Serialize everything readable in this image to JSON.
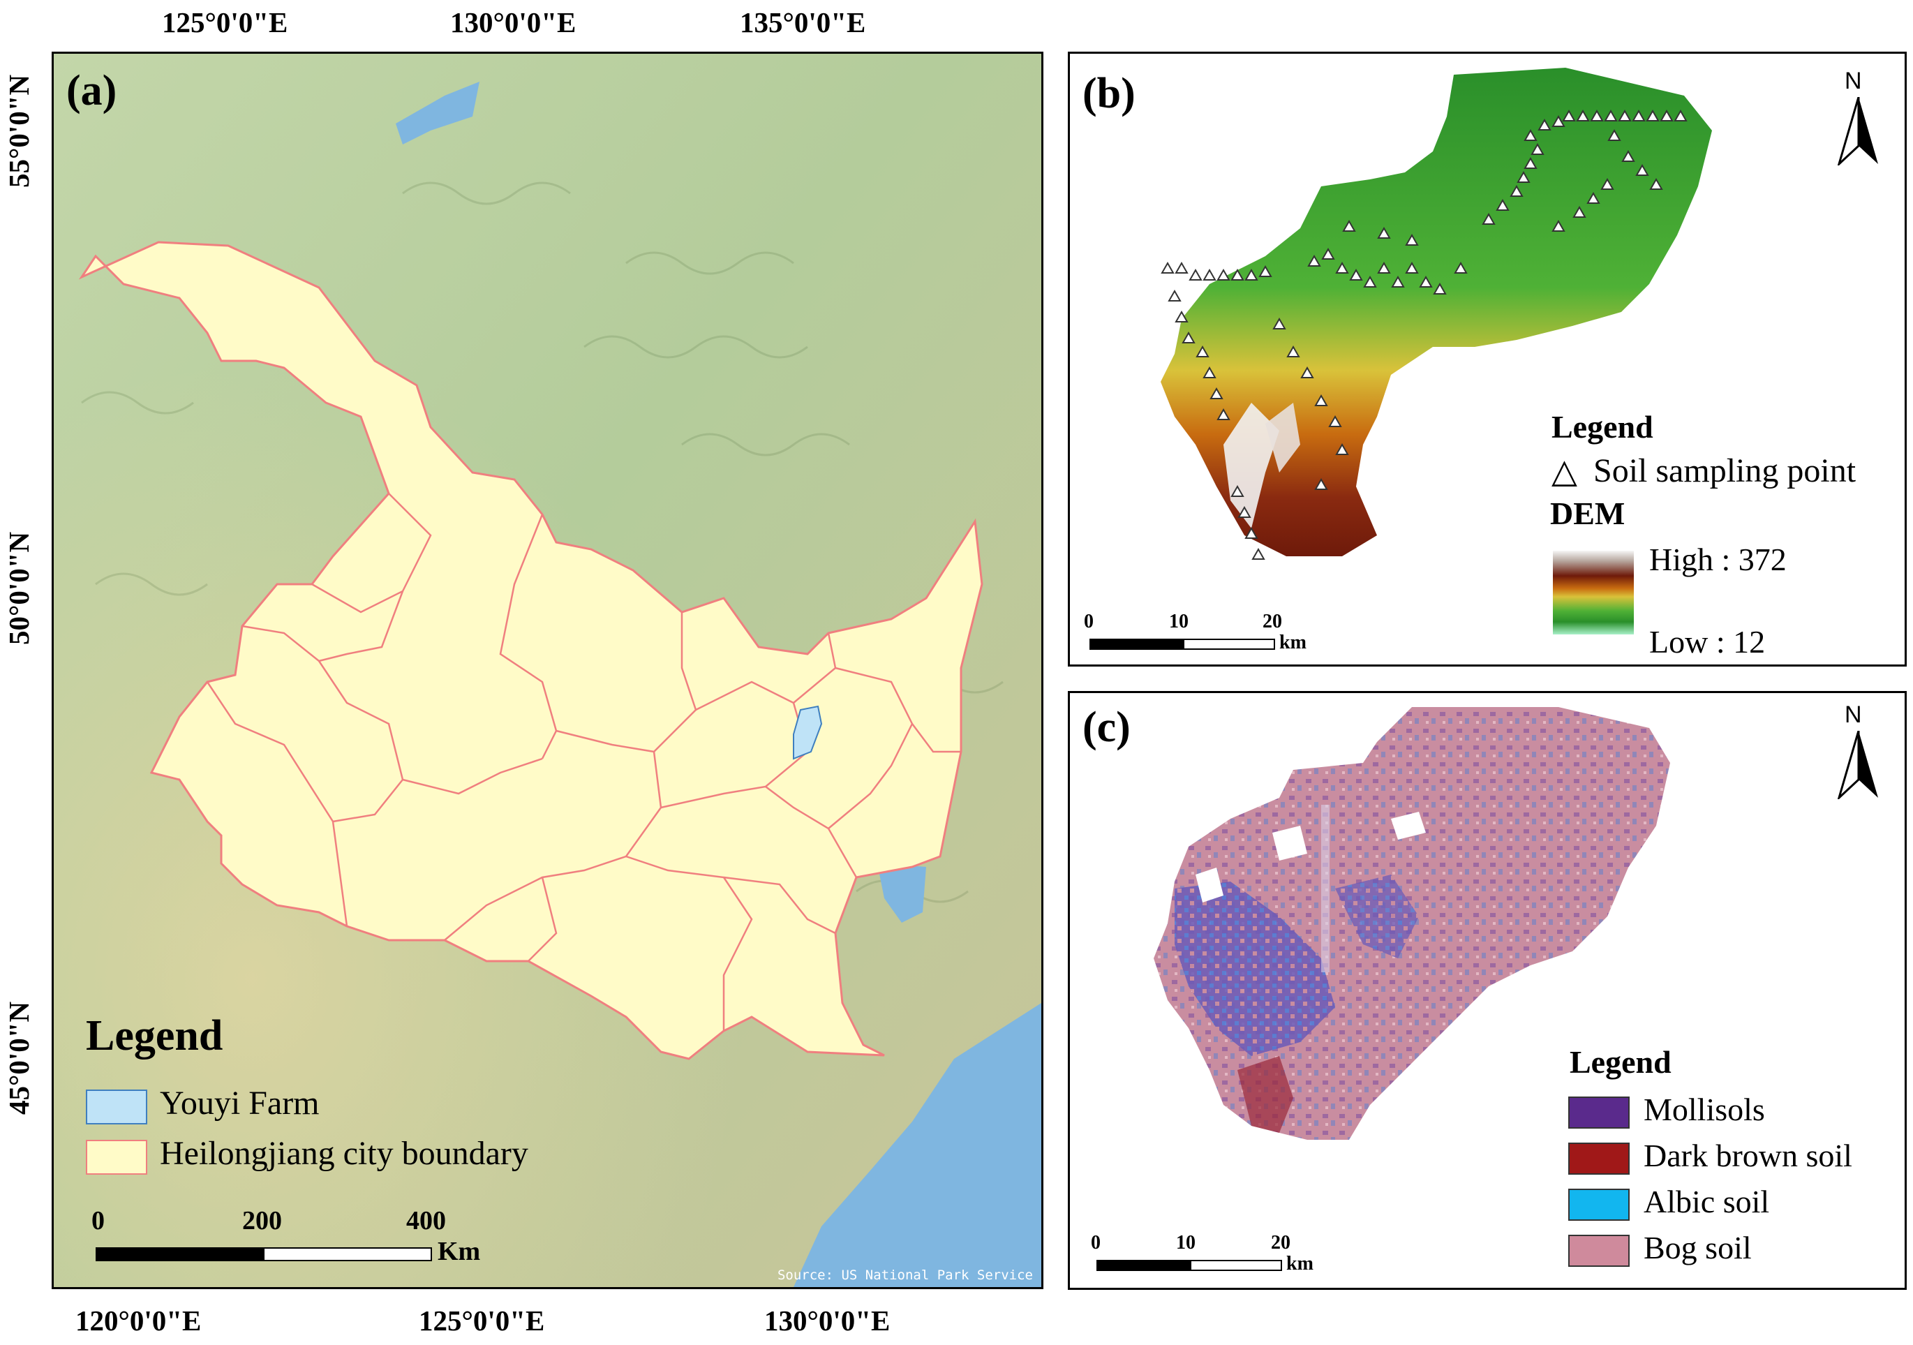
{
  "panel_a": {
    "label": "(a)",
    "top_lon_labels": [
      "125°0'0\"E",
      "130°0'0\"E",
      "135°0'0\"E"
    ],
    "bottom_lon_labels": [
      "120°0'0\"E",
      "125°0'0\"E",
      "130°0'0\"E"
    ],
    "lat_labels": [
      "55°0'0\"N",
      "50°0'0\"N",
      "45°0'0\"N"
    ],
    "legend": {
      "title": "Legend",
      "items": [
        {
          "label": "Youyi Farm",
          "color": "#bfe3f7"
        },
        {
          "label": "Heilongjiang city boundary",
          "color": "#fffbc8"
        }
      ]
    },
    "scale": {
      "ticks": [
        "0",
        "200",
        "400"
      ],
      "unit": "Km"
    },
    "source": "Source: US National Park Service",
    "colors": {
      "terrain": "#b9cfa0",
      "province_fill": "#fffbc8",
      "province_stroke": "#f07f7f",
      "water": "#7fb6e0"
    }
  },
  "panel_b": {
    "label": "(b)",
    "north": "N",
    "legend": {
      "title": "Legend",
      "point_label": "Soil sampling point",
      "point_symbol": "△",
      "dem_title": "DEM",
      "high": "High : 372",
      "low": "Low : 12"
    },
    "scale": {
      "ticks": [
        "0",
        "10",
        "20"
      ],
      "unit": "km"
    }
  },
  "panel_c": {
    "label": "(c)",
    "north": "N",
    "legend": {
      "title": "Legend",
      "items": [
        {
          "label": "Mollisols",
          "color": "#5a2a8c"
        },
        {
          "label": "Dark brown soil",
          "color": "#a01818"
        },
        {
          "label": "Albic soil",
          "color": "#12b6ef"
        },
        {
          "label": "Bog soil",
          "color": "#cf8a9c"
        }
      ]
    },
    "scale": {
      "ticks": [
        "0",
        "10",
        "20"
      ],
      "unit": "km"
    }
  }
}
